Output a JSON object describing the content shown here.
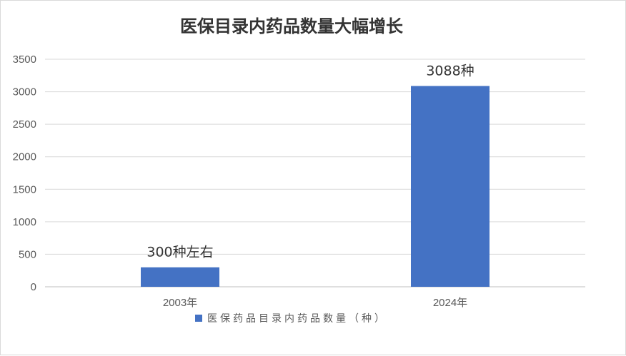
{
  "chart_data": {
    "type": "bar",
    "title": "医保目录内药品数量大幅增长",
    "categories": [
      "2003年",
      "2024年"
    ],
    "series": [
      {
        "name": "医保药品目录内药品数量（种）",
        "values": [
          300,
          3088
        ],
        "color": "#4472C4"
      }
    ],
    "data_labels": [
      "300种左右",
      "3088种"
    ],
    "ylim": [
      0,
      3500
    ],
    "yticks": [
      0,
      500,
      1000,
      1500,
      2000,
      2500,
      3000,
      3500
    ],
    "grid": true,
    "legend": "bottom",
    "xlabel": "",
    "ylabel": ""
  }
}
